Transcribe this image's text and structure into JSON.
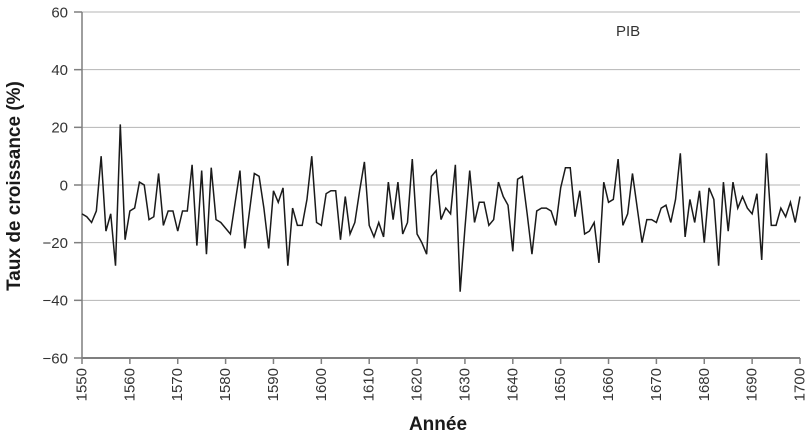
{
  "chart_data": {
    "type": "line",
    "title": "",
    "xlabel": "Année",
    "ylabel": "Taux de croissance (%)",
    "series": [
      {
        "name": "PIB",
        "x_start": 1550,
        "x_end": 1700,
        "x_step": 1,
        "values": [
          -10,
          -11,
          -13,
          -9,
          10,
          -16,
          -10,
          -28,
          21,
          -19,
          -9,
          -8,
          1,
          0,
          -12,
          -11,
          4,
          -14,
          -9,
          -9,
          -16,
          -9,
          -9,
          7,
          -21,
          5,
          -24,
          6,
          -12,
          -13,
          -15,
          -17,
          -6,
          5,
          -22,
          -9,
          4,
          3,
          -8,
          -22,
          -2,
          -6,
          -1,
          -28,
          -8,
          -14,
          -14,
          -5,
          10,
          -13,
          -14,
          -3,
          -2,
          -2,
          -19,
          -4,
          -17,
          -13,
          -2,
          8,
          -14,
          -18,
          -13,
          -18,
          1,
          -12,
          1,
          -17,
          -13,
          9,
          -17,
          -20,
          -24,
          3,
          5,
          -12,
          -8,
          -10,
          7,
          -37,
          -15,
          5,
          -13,
          -6,
          -6,
          -14,
          -12,
          1,
          -4,
          -7,
          -23,
          2,
          3,
          -10,
          -24,
          -9,
          -8,
          -8,
          -9,
          -14,
          -1,
          6,
          6,
          -11,
          -2,
          -17,
          -16,
          -13,
          -27,
          1,
          -6,
          -5,
          9,
          -14,
          -10,
          4,
          -8,
          -20,
          -12,
          -12,
          -13,
          -8,
          -7,
          -13,
          -5,
          11,
          -18,
          -5,
          -13,
          -2,
          -20,
          -1,
          -5,
          -28,
          1,
          -16,
          1,
          -8,
          -4,
          -8,
          -10,
          -3,
          -26,
          11,
          -14,
          -14,
          -8,
          -11,
          -6,
          -13,
          -4
        ]
      }
    ],
    "series_label": "PIB",
    "ylim": [
      -60,
      60
    ],
    "yticks": [
      60,
      40,
      20,
      0,
      -20,
      -40,
      -60
    ],
    "ytick_labels": [
      "60",
      "40",
      "20",
      "0",
      "−20",
      "−40",
      "−60"
    ],
    "xticks": [
      1550,
      1560,
      1570,
      1580,
      1590,
      1600,
      1610,
      1620,
      1630,
      1640,
      1650,
      1660,
      1670,
      1680,
      1690,
      1700
    ],
    "xtick_labels": [
      "1550",
      "1560",
      "1570",
      "1580",
      "1590",
      "1600",
      "1610",
      "1620",
      "1630",
      "1640",
      "1650",
      "1660",
      "1670",
      "1680",
      "1690",
      "1700"
    ],
    "grid": "horizontal",
    "legend_position": "top-right-inside",
    "colors": {
      "line": "#1a1a1a",
      "grid": "#b5b5b5",
      "axis": "#7f7f7f",
      "tick_text": "#333333",
      "title_text": "#1a1a1a"
    }
  }
}
